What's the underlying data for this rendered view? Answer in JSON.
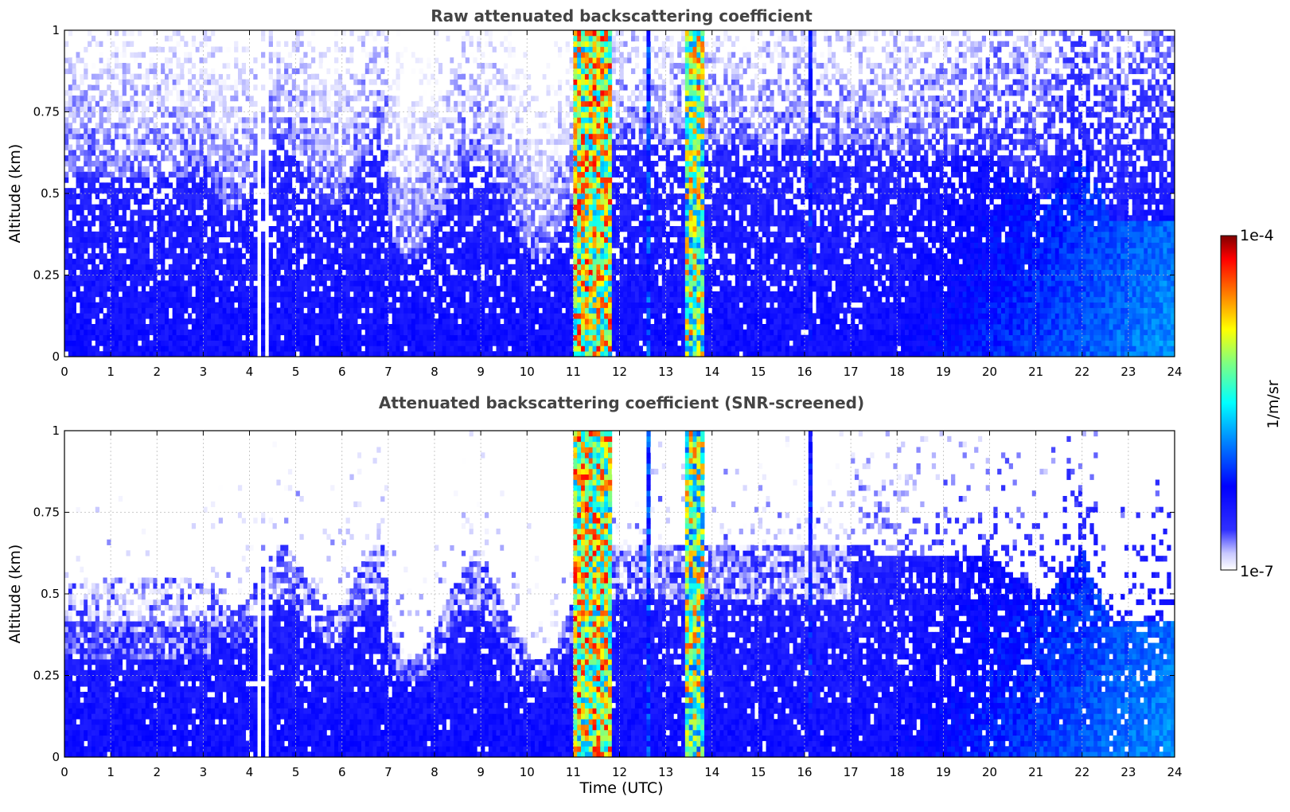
{
  "chart_data": [
    {
      "type": "heatmap",
      "title": "Raw attenuated backscattering coefficient",
      "xlabel": "",
      "ylabel": "Altitude (km)",
      "xlim": [
        0,
        24
      ],
      "ylim": [
        0,
        1
      ],
      "xticks": [
        "0",
        "1",
        "2",
        "3",
        "4",
        "5",
        "6",
        "7",
        "8",
        "9",
        "10",
        "11",
        "12",
        "13",
        "14",
        "15",
        "16",
        "17",
        "18",
        "19",
        "20",
        "21",
        "22",
        "23",
        "24"
      ],
      "yticks": [
        "0",
        "0.25",
        "0.5",
        "0.75",
        "1"
      ],
      "grid": true,
      "screening": "raw",
      "missing_data_hours": [
        [
          4.15,
          4.25
        ],
        [
          4.35,
          4.45
        ]
      ],
      "events": [
        {
          "start": 11.0,
          "end": 11.85,
          "kind": "cloud",
          "max_log": -4.2
        },
        {
          "start": 13.4,
          "end": 13.85,
          "kind": "cloud",
          "max_log": -4.4
        },
        {
          "start": 12.6,
          "end": 12.7,
          "kind": "thin",
          "max_log": -5.8
        },
        {
          "start": 16.1,
          "end": 16.2,
          "kind": "thin",
          "max_log": -6.0
        }
      ]
    },
    {
      "type": "heatmap",
      "title": "Attenuated backscattering coefficient (SNR-screened)",
      "xlabel": "Time (UTC)",
      "ylabel": "Altitude (km)",
      "xlim": [
        0,
        24
      ],
      "ylim": [
        0,
        1
      ],
      "xticks": [
        "0",
        "1",
        "2",
        "3",
        "4",
        "5",
        "6",
        "7",
        "8",
        "9",
        "10",
        "11",
        "12",
        "13",
        "14",
        "15",
        "16",
        "17",
        "18",
        "19",
        "20",
        "21",
        "22",
        "23",
        "24"
      ],
      "yticks": [
        "0",
        "0.25",
        "0.5",
        "0.75",
        "1"
      ],
      "grid": true,
      "screening": "snr",
      "missing_data_hours": [
        [
          4.15,
          4.25
        ],
        [
          4.35,
          4.45
        ]
      ],
      "events": [
        {
          "start": 11.0,
          "end": 11.85,
          "kind": "cloud",
          "max_log": -4.2
        },
        {
          "start": 13.4,
          "end": 13.85,
          "kind": "cloud",
          "max_log": -4.4
        },
        {
          "start": 12.6,
          "end": 12.7,
          "kind": "thin",
          "max_log": -5.8
        },
        {
          "start": 16.1,
          "end": 16.2,
          "kind": "thin",
          "max_log": -6.0
        }
      ]
    }
  ],
  "colorbar": {
    "label": "1/m/sr",
    "min_label": "1e-7",
    "max_label": "1e-4",
    "log_min": -7,
    "log_max": -4,
    "colormap": "jet-like (white-lavender at low end to dark red at high end)"
  }
}
